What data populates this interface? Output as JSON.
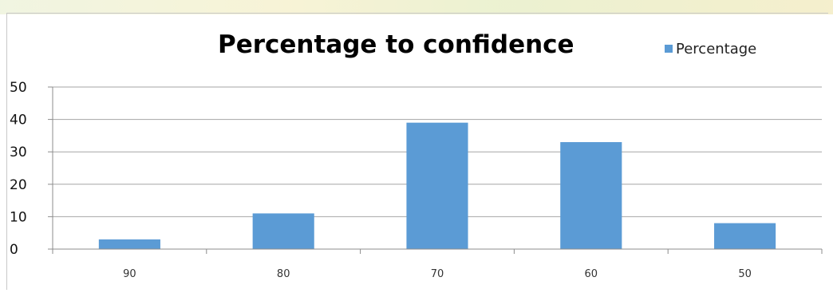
{
  "chart_data": {
    "type": "bar",
    "title": "Percentage to confidence",
    "categories": [
      "90",
      "80",
      "70",
      "60",
      "50"
    ],
    "series": [
      {
        "name": "Percentage",
        "values": [
          3,
          11,
          39,
          33,
          8
        ],
        "color": "#5b9bd5"
      }
    ],
    "xlabel": "",
    "ylabel": "",
    "ylim": [
      0,
      50
    ],
    "yticks": [
      "0",
      "10",
      "20",
      "30",
      "40",
      "50"
    ],
    "grid": true,
    "legend_position": "top-right"
  }
}
